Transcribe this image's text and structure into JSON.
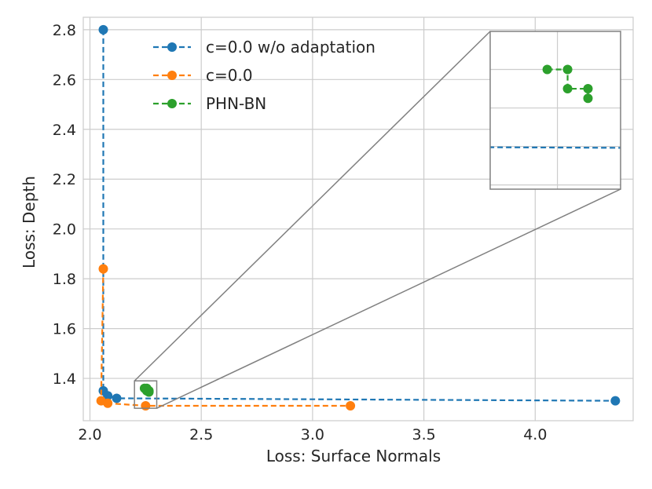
{
  "chart_data": {
    "type": "line",
    "title": "",
    "xlabel": "Loss: Surface Normals",
    "ylabel": "Loss: Depth",
    "xlim": [
      1.97,
      4.44
    ],
    "ylim": [
      1.23,
      2.85
    ],
    "xticks": [
      2.0,
      2.5,
      3.0,
      3.5,
      4.0
    ],
    "xtick_labels": [
      "2.0",
      "2.5",
      "3.0",
      "3.5",
      "4.0"
    ],
    "yticks": [
      1.4,
      1.6,
      1.8,
      2.0,
      2.2,
      2.4,
      2.6,
      2.8
    ],
    "ytick_labels": [
      "1.4",
      "1.6",
      "1.8",
      "2.0",
      "2.2",
      "2.4",
      "2.6",
      "2.8"
    ],
    "grid": true,
    "legend_position": "top-left",
    "series": [
      {
        "name": "c=0.0 w/o adaptation",
        "color": "#1f77b4",
        "line_style": "dashed",
        "points": [
          {
            "x": 2.06,
            "y": 2.8
          },
          {
            "x": 2.06,
            "y": 1.35
          },
          {
            "x": 2.08,
            "y": 1.33
          },
          {
            "x": 2.12,
            "y": 1.32
          },
          {
            "x": 4.36,
            "y": 1.31
          }
        ]
      },
      {
        "name": "c=0.0",
        "color": "#ff7f0e",
        "line_style": "dashed",
        "points": [
          {
            "x": 2.06,
            "y": 1.84
          },
          {
            "x": 2.05,
            "y": 1.31
          },
          {
            "x": 2.08,
            "y": 1.3
          },
          {
            "x": 2.25,
            "y": 1.29
          },
          {
            "x": 3.17,
            "y": 1.29
          }
        ]
      },
      {
        "name": "PHN-BN",
        "color": "#2ca02c",
        "line_style": "dashed",
        "points": [
          {
            "x": 2.245,
            "y": 1.36
          },
          {
            "x": 2.255,
            "y": 1.36
          },
          {
            "x": 2.255,
            "y": 1.35
          },
          {
            "x": 2.265,
            "y": 1.35
          },
          {
            "x": 2.265,
            "y": 1.345
          }
        ]
      }
    ],
    "inset": {
      "source_region": {
        "x_range": [
          2.2,
          2.3
        ],
        "y_range": [
          1.28,
          1.39
        ]
      },
      "x_range": [
        2.217,
        2.281
      ],
      "y_range": [
        1.2978,
        1.3798
      ],
      "xticks": [
        2.25
      ],
      "yticks": [
        1.3,
        1.32,
        1.34,
        1.36
      ],
      "note": "zoomed view of the PHN-BN cluster"
    },
    "colors": {
      "grid": "#cccccc",
      "connector": "#808080",
      "text": "#262626"
    }
  }
}
